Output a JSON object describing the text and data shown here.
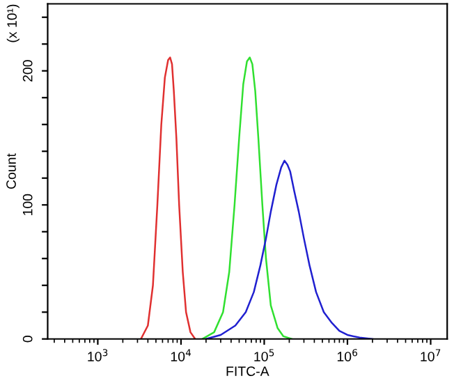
{
  "chart_data": {
    "type": "line",
    "xlabel": "FITC-A",
    "ylabel": "Count",
    "annotations": [
      "(x 10¹)"
    ],
    "log": "x",
    "grid": false,
    "legend": false,
    "marker": "none",
    "line_style": "solid",
    "xlim": [
      250,
      15800000
    ],
    "xticks": [
      {
        "value": 1000,
        "label": "10$^{3}$"
      },
      {
        "value": 10000,
        "label": "10$^{4}$"
      },
      {
        "value": 100000,
        "label": "10$^{5}$"
      },
      {
        "value": 1000000,
        "label": "10$^{6}$"
      },
      {
        "value": 10000000,
        "label": "10$^{7}$"
      }
    ],
    "ylim": [
      0,
      250
    ],
    "yticks": [
      0,
      {
        "value": 20,
        "label": null
      },
      {
        "value": 40,
        "label": null
      },
      {
        "value": 60,
        "label": null
      },
      {
        "value": 80,
        "label": null
      },
      100,
      {
        "value": 120,
        "label": null
      },
      {
        "value": 140,
        "label": null
      },
      {
        "value": 160,
        "label": null
      },
      {
        "value": 180,
        "label": null
      },
      200,
      {
        "value": 220,
        "label": null
      },
      {
        "value": 240,
        "label": null
      }
    ],
    "series": [
      {
        "color": "#e03030",
        "x": [
          3300,
          4000,
          4600,
          5200,
          5800,
          6400,
          7000,
          7400,
          7800,
          8200,
          8800,
          9500,
          10500,
          11500,
          13000,
          14800
        ],
        "values": [
          0,
          10,
          40,
          100,
          160,
          195,
          208,
          210,
          205,
          185,
          150,
          100,
          50,
          20,
          5,
          0
        ]
      },
      {
        "color": "#30e030",
        "x": [
          18000,
          25000,
          32000,
          38000,
          44000,
          50000,
          56000,
          62000,
          67000,
          72000,
          78000,
          85000,
          95000,
          105000,
          120000,
          145000,
          170000,
          215000
        ],
        "values": [
          0,
          5,
          20,
          50,
          100,
          150,
          190,
          207,
          210,
          205,
          185,
          150,
          100,
          60,
          25,
          8,
          2,
          0
        ]
      },
      {
        "color": "#2020d0",
        "x": [
          20000,
          30000,
          45000,
          60000,
          75000,
          90000,
          105000,
          120000,
          140000,
          160000,
          175000,
          190000,
          205000,
          230000,
          260000,
          300000,
          350000,
          420000,
          520000,
          650000,
          800000,
          1000000,
          1400000,
          2000000
        ],
        "values": [
          0,
          3,
          10,
          20,
          35,
          55,
          75,
          95,
          115,
          128,
          133,
          130,
          125,
          110,
          95,
          75,
          55,
          35,
          20,
          12,
          6,
          3,
          1,
          0
        ]
      }
    ]
  }
}
